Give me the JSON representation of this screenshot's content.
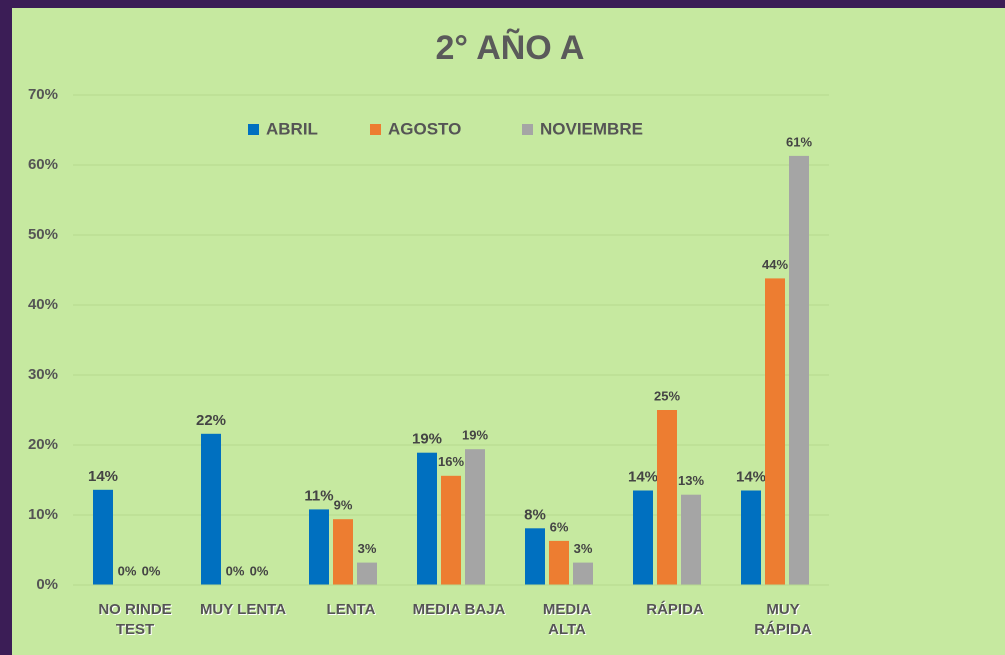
{
  "chart_data": {
    "type": "bar",
    "title": "2° AÑO A",
    "categories": [
      "NO RINDE\nTEST",
      "MUY LENTA",
      "LENTA",
      "MEDIA BAJA",
      "MEDIA\nALTA",
      "RÁPIDA",
      "MUY\nRÁPIDA"
    ],
    "series": [
      {
        "name": "ABRIL",
        "color": "#0070c0",
        "values": [
          13.6,
          21.6,
          10.8,
          18.9,
          8.1,
          13.5,
          13.5
        ],
        "value_labels": [
          "14%",
          "22%",
          "11%",
          "19%",
          "8%",
          "14%",
          "14%"
        ]
      },
      {
        "name": "AGOSTO",
        "color": "#ed7d31",
        "values": [
          0,
          0,
          9.4,
          15.6,
          6.3,
          25,
          43.8
        ],
        "value_labels": [
          "0%",
          "0%",
          "9%",
          "16%",
          "6%",
          "25%",
          "44%"
        ]
      },
      {
        "name": "NOVIEMBRE",
        "color": "#a5a5a5",
        "values": [
          0,
          0,
          3.2,
          19.4,
          3.2,
          12.9,
          61.3
        ],
        "value_labels": [
          "0%",
          "0%",
          "3%",
          "19%",
          "3%",
          "13%",
          "61%"
        ]
      }
    ],
    "ylim": [
      0,
      70
    ],
    "yticks": [
      {
        "value": 0,
        "label": "0%"
      },
      {
        "value": 10,
        "label": "10%"
      },
      {
        "value": 20,
        "label": "20%"
      },
      {
        "value": 30,
        "label": "30%"
      },
      {
        "value": 40,
        "label": "40%"
      },
      {
        "value": 50,
        "label": "50%"
      },
      {
        "value": 60,
        "label": "60%"
      },
      {
        "value": 70,
        "label": "70%"
      }
    ],
    "grid": true,
    "legend": "top"
  }
}
